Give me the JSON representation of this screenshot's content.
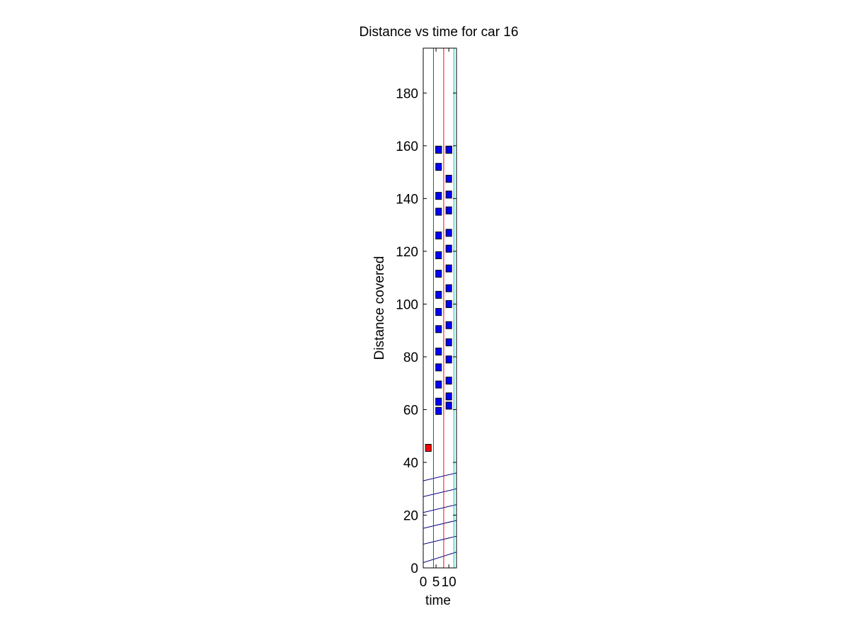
{
  "figure": {
    "background": "#ffffff"
  },
  "chart_data": {
    "type": "scatter",
    "title": "Distance vs time for car 16",
    "xlabel": "time",
    "ylabel": "Distance covered",
    "xlim": [
      0,
      13
    ],
    "ylim": [
      0,
      197
    ],
    "xticks": [
      0,
      5,
      10
    ],
    "xtick_labels": [
      "0",
      "5",
      "10"
    ],
    "yticks": [
      0,
      20,
      40,
      60,
      80,
      100,
      120,
      140,
      160,
      180
    ],
    "ytick_labels": [
      "0",
      "20",
      "40",
      "60",
      "80",
      "100",
      "120",
      "140",
      "160",
      "180"
    ],
    "grid": false,
    "legend": "none",
    "vertical_lines": [
      {
        "x": 4,
        "color": "#008000"
      },
      {
        "x": 8,
        "color": "#ff0000"
      },
      {
        "x": 12,
        "color": "#00bfbf"
      }
    ],
    "trajectories": {
      "color": "#000080",
      "x": [
        0,
        13
      ],
      "lines": [
        [
          2,
          6
        ],
        [
          9,
          12
        ],
        [
          15,
          18
        ],
        [
          21,
          24
        ],
        [
          27,
          30
        ],
        [
          33,
          36
        ]
      ]
    },
    "series": [
      {
        "color": "#ff0000",
        "marker": "square",
        "x": [
          2
        ],
        "y": [
          45.5
        ]
      },
      {
        "color": "#0000ff",
        "marker": "square",
        "x": [
          6,
          6,
          6,
          6,
          6,
          6,
          6,
          6,
          6,
          6,
          6,
          6,
          6,
          6,
          6,
          6,
          6
        ],
        "y": [
          59.5,
          63,
          69.5,
          76,
          82,
          90.5,
          97,
          103.5,
          111.5,
          118.5,
          126,
          135,
          141,
          152,
          158.5,
          158.5,
          158.5
        ]
      },
      {
        "color": "#0000ff",
        "marker": "square",
        "x": [
          10,
          10,
          10,
          10,
          10,
          10,
          10,
          10,
          10,
          10,
          10,
          10,
          10,
          10,
          10,
          10,
          10,
          10
        ],
        "y": [
          61.5,
          65,
          71,
          79,
          85.5,
          92,
          100,
          106,
          113.5,
          121,
          127,
          135.5,
          141.5,
          147.5,
          158.5,
          158.5,
          158.5,
          158.5
        ]
      }
    ]
  }
}
